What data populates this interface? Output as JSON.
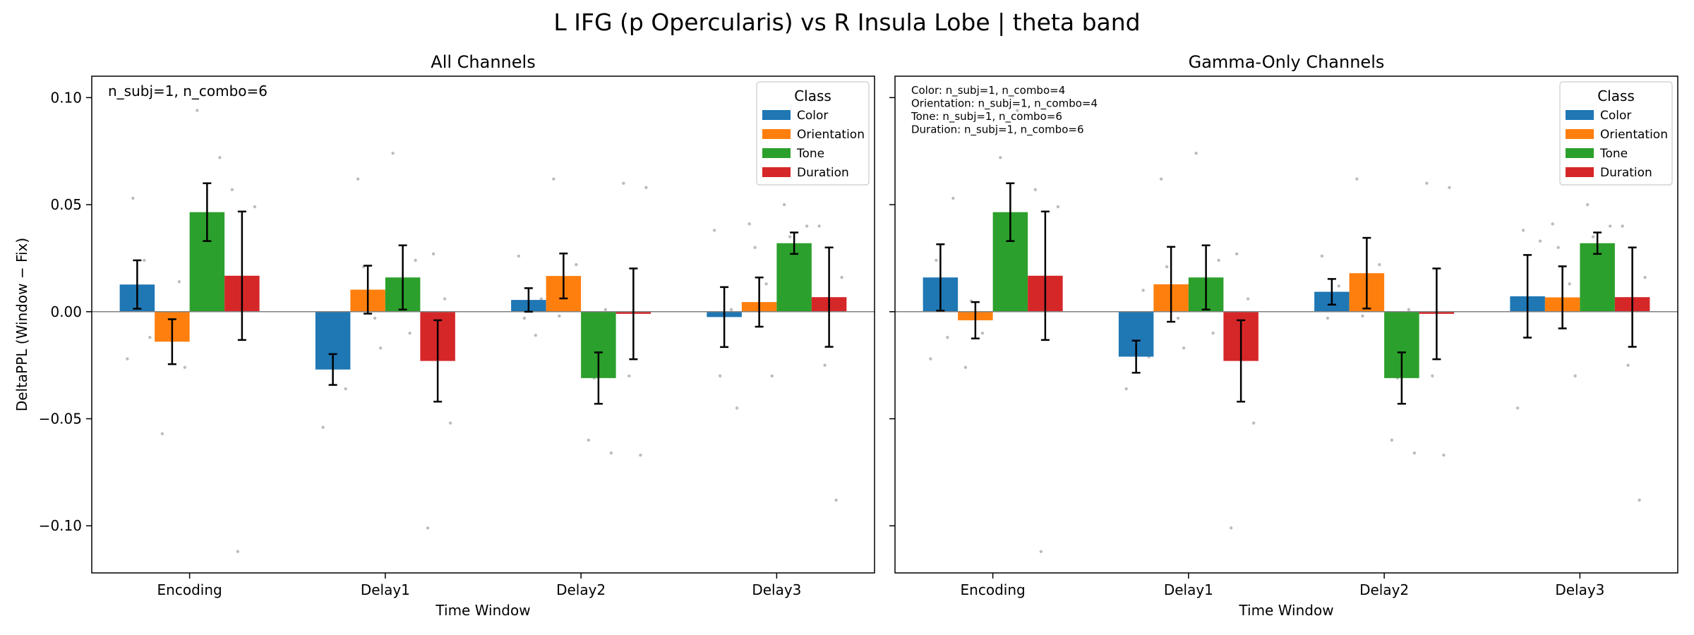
{
  "figure": {
    "title": "L IFG (p Opercularis) vs R Insula Lobe  |  theta band"
  },
  "chart_data": [
    {
      "type": "bar",
      "title": "All Channels",
      "xlabel": "Time Window",
      "ylabel": "DeltaPPL (Window − Fix)",
      "ylim": [
        -0.122,
        0.11
      ],
      "yticks": [
        0.1,
        0.05,
        0.0,
        -0.05,
        -0.1
      ],
      "ytick_labels": [
        "0.10",
        "0.05",
        "0.00",
        "−0.05",
        "−0.10"
      ],
      "categories": [
        "Encoding",
        "Delay1",
        "Delay2",
        "Delay3"
      ],
      "annotation": [
        "n_subj=1, n_combo=6"
      ],
      "legend": {
        "title": "Class",
        "position": "top-right"
      },
      "series": [
        {
          "name": "Color",
          "color": "#1f77b4",
          "values": [
            0.0127,
            -0.027,
            0.0055,
            -0.0025
          ],
          "err": [
            0.0113,
            0.0072,
            0.0055,
            0.014
          ]
        },
        {
          "name": "Orientation",
          "color": "#ff7f0e",
          "values": [
            -0.014,
            0.0103,
            0.0167,
            0.0045
          ],
          "err": [
            0.0105,
            0.0112,
            0.0105,
            0.0115
          ]
        },
        {
          "name": "Tone",
          "color": "#2ca02c",
          "values": [
            0.0465,
            0.016,
            -0.031,
            0.032
          ],
          "err": [
            0.0135,
            0.015,
            0.012,
            0.005
          ]
        },
        {
          "name": "Duration",
          "color": "#d62728",
          "values": [
            0.0168,
            -0.023,
            -0.001,
            0.0068
          ],
          "err": [
            0.03,
            0.019,
            0.0212,
            0.0232
          ]
        }
      ],
      "points": [
        [
          [
            -0.022,
            -0.012,
            0.053,
            0.024
          ],
          [
            -0.057,
            -0.026,
            -0.002,
            0.014
          ],
          [
            0.094,
            0.072,
            0.042,
            0.031
          ],
          [
            0.057,
            0.049,
            -0.112,
            0.004
          ]
        ],
        [
          [
            -0.054,
            -0.036,
            -0.021,
            -0.002
          ],
          [
            0.062,
            -0.017,
            0.021,
            -0.003
          ],
          [
            0.074,
            0.024,
            0.006,
            -0.01
          ],
          [
            -0.101,
            -0.052,
            0.027,
            0.006
          ]
        ],
        [
          [
            0.026,
            0.006,
            -0.003,
            -0.011
          ],
          [
            0.062,
            0.022,
            -0.002,
            0.011
          ],
          [
            -0.06,
            -0.066,
            -0.031,
            0.001
          ],
          [
            0.06,
            0.058,
            -0.03,
            -0.067
          ]
        ],
        [
          [
            0.038,
            -0.045,
            -0.03,
            0.001
          ],
          [
            0.041,
            -0.03,
            0.03,
            0.013
          ],
          [
            0.05,
            0.04,
            0.035,
            0.021
          ],
          [
            0.04,
            0.016,
            -0.025,
            -0.088
          ]
        ]
      ]
    },
    {
      "type": "bar",
      "title": "Gamma-Only Channels",
      "xlabel": "Time Window",
      "ylabel": "",
      "ylim": [
        -0.122,
        0.11
      ],
      "yticks": [
        0.1,
        0.05,
        0.0,
        -0.05,
        -0.1
      ],
      "categories": [
        "Encoding",
        "Delay1",
        "Delay2",
        "Delay3"
      ],
      "annotation": [
        "Color: n_subj=1, n_combo=4",
        "Orientation: n_subj=1, n_combo=4",
        "Tone: n_subj=1, n_combo=6",
        "Duration: n_subj=1, n_combo=6"
      ],
      "legend": {
        "title": "Class",
        "position": "top-right"
      },
      "series": [
        {
          "name": "Color",
          "color": "#1f77b4",
          "values": [
            0.016,
            -0.021,
            0.0093,
            0.0072
          ],
          "err": [
            0.0155,
            0.0075,
            0.006,
            0.0193
          ]
        },
        {
          "name": "Orientation",
          "color": "#ff7f0e",
          "values": [
            -0.004,
            0.0128,
            0.018,
            0.0067
          ],
          "err": [
            0.0085,
            0.0175,
            0.0165,
            0.0145
          ]
        },
        {
          "name": "Tone",
          "color": "#2ca02c",
          "values": [
            0.0465,
            0.016,
            -0.031,
            0.032
          ],
          "err": [
            0.0135,
            0.015,
            0.012,
            0.005
          ]
        },
        {
          "name": "Duration",
          "color": "#d62728",
          "values": [
            0.0168,
            -0.023,
            -0.001,
            0.0068
          ],
          "err": [
            0.03,
            0.019,
            0.0212,
            0.0232
          ]
        }
      ],
      "points": [
        [
          [
            -0.022,
            0.053,
            0.024,
            -0.012
          ],
          [
            -0.026,
            -0.002,
            0.005,
            -0.01
          ],
          [
            0.072,
            0.042,
            0.031,
            0.094
          ],
          [
            0.057,
            0.049,
            -0.112,
            0.004
          ]
        ],
        [
          [
            -0.036,
            -0.021,
            -0.002,
            0.01
          ],
          [
            0.062,
            -0.017,
            0.021,
            -0.003
          ],
          [
            0.074,
            0.024,
            0.006,
            -0.01
          ],
          [
            -0.101,
            -0.052,
            0.027,
            0.006
          ]
        ],
        [
          [
            0.026,
            0.006,
            -0.003,
            0.012
          ],
          [
            0.062,
            0.022,
            -0.002,
            0.011
          ],
          [
            -0.06,
            -0.066,
            -0.031,
            0.001
          ],
          [
            0.06,
            0.058,
            -0.03,
            -0.067
          ]
        ],
        [
          [
            -0.045,
            0.033,
            0.038,
            0.001
          ],
          [
            0.041,
            -0.03,
            0.03,
            0.013
          ],
          [
            0.05,
            0.04,
            0.035,
            0.021
          ],
          [
            0.04,
            0.016,
            -0.025,
            -0.088
          ]
        ]
      ]
    }
  ]
}
